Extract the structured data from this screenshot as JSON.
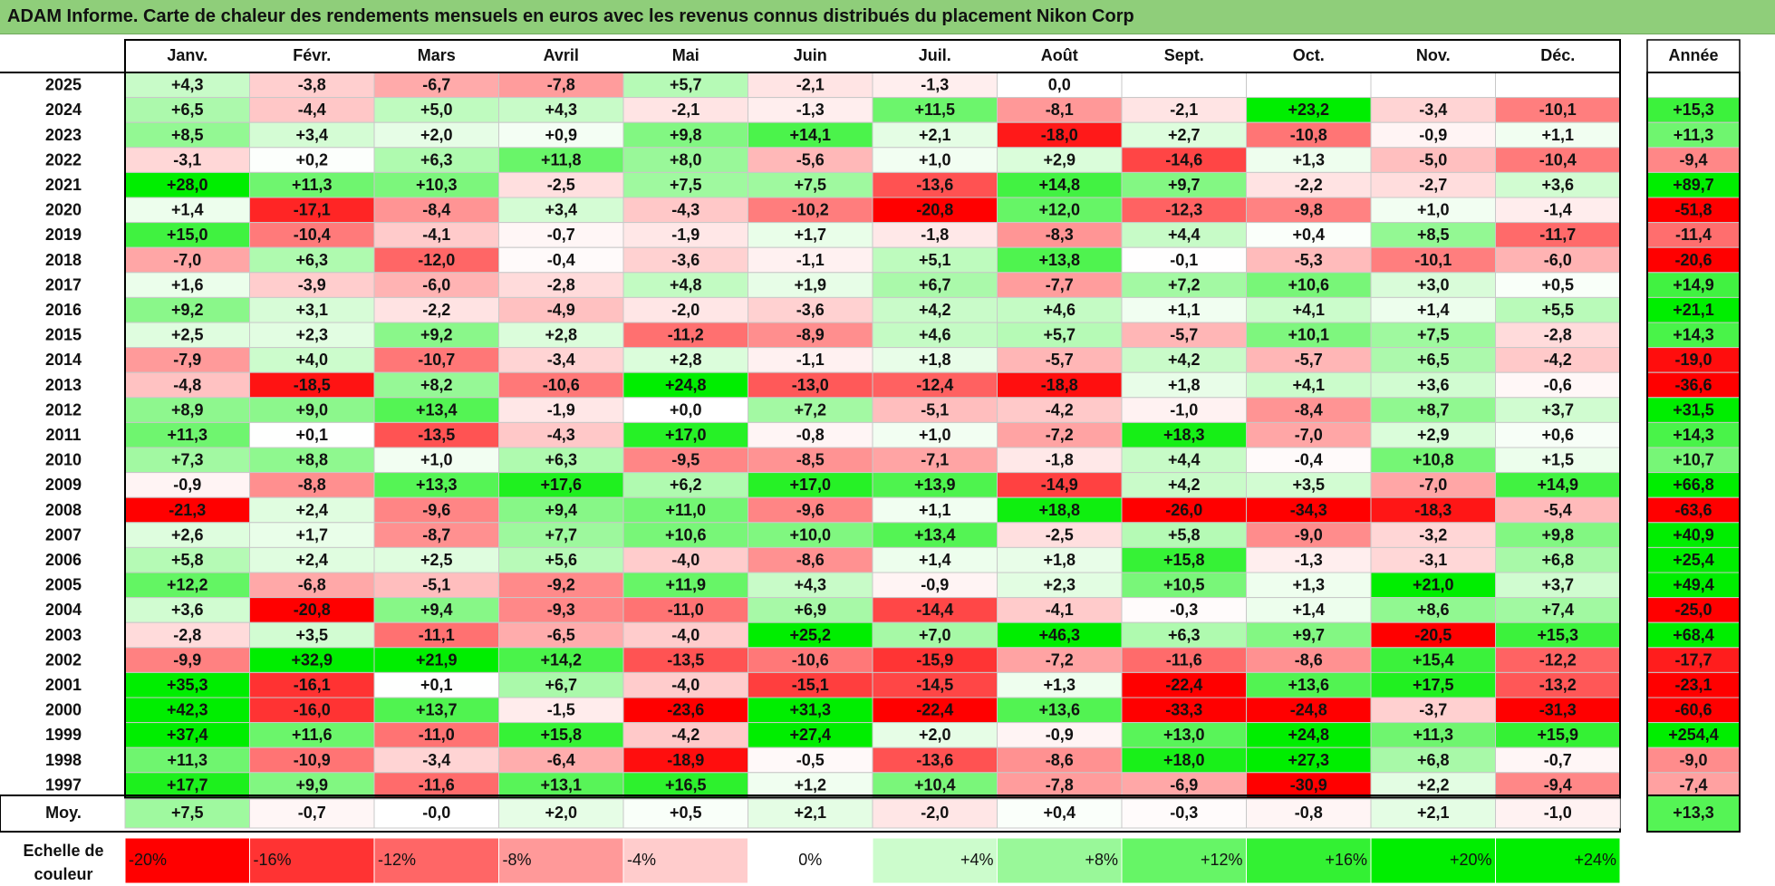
{
  "title": "ADAM Informe. Carte de chaleur des rendements mensuels en euros avec les revenus connus distribués du placement Nikon Corp",
  "chart_data": {
    "type": "heatmap",
    "columns": [
      "Janv.",
      "Févr.",
      "Mars",
      "Avril",
      "Mai",
      "Juin",
      "Juil.",
      "Août",
      "Sept.",
      "Oct.",
      "Nov.",
      "Déc."
    ],
    "annual_header": "Année",
    "rows": [
      {
        "year": "2025",
        "values": [
          "+4,3",
          "-3,8",
          "-6,7",
          "-7,8",
          "+5,7",
          "-2,1",
          "-1,3",
          "0,0",
          "",
          "",
          "",
          ""
        ],
        "annual": ""
      },
      {
        "year": "2024",
        "values": [
          "+6,5",
          "-4,4",
          "+5,0",
          "+4,3",
          "-2,1",
          "-1,3",
          "+11,5",
          "-8,1",
          "-2,1",
          "+23,2",
          "-3,4",
          "-10,1"
        ],
        "annual": "+15,3"
      },
      {
        "year": "2023",
        "values": [
          "+8,5",
          "+3,4",
          "+2,0",
          "+0,9",
          "+9,8",
          "+14,1",
          "+2,1",
          "-18,0",
          "+2,7",
          "-10,8",
          "-0,9",
          "+1,1"
        ],
        "annual": "+11,3"
      },
      {
        "year": "2022",
        "values": [
          "-3,1",
          "+0,2",
          "+6,3",
          "+11,8",
          "+8,0",
          "-5,6",
          "+1,0",
          "+2,9",
          "-14,6",
          "+1,3",
          "-5,0",
          "-10,4"
        ],
        "annual": "-9,4"
      },
      {
        "year": "2021",
        "values": [
          "+28,0",
          "+11,3",
          "+10,3",
          "-2,5",
          "+7,5",
          "+7,5",
          "-13,6",
          "+14,8",
          "+9,7",
          "-2,2",
          "-2,7",
          "+3,6"
        ],
        "annual": "+89,7"
      },
      {
        "year": "2020",
        "values": [
          "+1,4",
          "-17,1",
          "-8,4",
          "+3,4",
          "-4,3",
          "-10,2",
          "-20,8",
          "+12,0",
          "-12,3",
          "-9,8",
          "+1,0",
          "-1,4"
        ],
        "annual": "-51,8"
      },
      {
        "year": "2019",
        "values": [
          "+15,0",
          "-10,4",
          "-4,1",
          "-0,7",
          "-1,9",
          "+1,7",
          "-1,8",
          "-8,3",
          "+4,4",
          "+0,4",
          "+8,5",
          "-11,7"
        ],
        "annual": "-11,4"
      },
      {
        "year": "2018",
        "values": [
          "-7,0",
          "+6,3",
          "-12,0",
          "-0,4",
          "-3,6",
          "-1,1",
          "+5,1",
          "+13,8",
          "-0,1",
          "-5,3",
          "-10,1",
          "-6,0"
        ],
        "annual": "-20,6"
      },
      {
        "year": "2017",
        "values": [
          "+1,6",
          "-3,9",
          "-6,0",
          "-2,8",
          "+4,8",
          "+1,9",
          "+6,7",
          "-7,7",
          "+7,2",
          "+10,6",
          "+3,0",
          "+0,5"
        ],
        "annual": "+14,9"
      },
      {
        "year": "2016",
        "values": [
          "+9,2",
          "+3,1",
          "-2,2",
          "-4,9",
          "-2,0",
          "-3,6",
          "+4,2",
          "+4,6",
          "+1,1",
          "+4,1",
          "+1,4",
          "+5,5"
        ],
        "annual": "+21,1"
      },
      {
        "year": "2015",
        "values": [
          "+2,5",
          "+2,3",
          "+9,2",
          "+2,8",
          "-11,2",
          "-8,9",
          "+4,6",
          "+5,7",
          "-5,7",
          "+10,1",
          "+7,5",
          "-2,8"
        ],
        "annual": "+14,3"
      },
      {
        "year": "2014",
        "values": [
          "-7,9",
          "+4,0",
          "-10,7",
          "-3,4",
          "+2,8",
          "-1,1",
          "+1,8",
          "-5,7",
          "+4,2",
          "-5,7",
          "+6,5",
          "-4,2"
        ],
        "annual": "-19,0"
      },
      {
        "year": "2013",
        "values": [
          "-4,8",
          "-18,5",
          "+8,2",
          "-10,6",
          "+24,8",
          "-13,0",
          "-12,4",
          "-18,8",
          "+1,8",
          "+4,1",
          "+3,6",
          "-0,6"
        ],
        "annual": "-36,6"
      },
      {
        "year": "2012",
        "values": [
          "+8,9",
          "+9,0",
          "+13,4",
          "-1,9",
          "+0,0",
          "+7,2",
          "-5,1",
          "-4,2",
          "-1,0",
          "-8,4",
          "+8,7",
          "+3,7"
        ],
        "annual": "+31,5"
      },
      {
        "year": "2011",
        "values": [
          "+11,3",
          "+0,1",
          "-13,5",
          "-4,3",
          "+17,0",
          "-0,8",
          "+1,0",
          "-7,2",
          "+18,3",
          "-7,0",
          "+2,9",
          "+0,6"
        ],
        "annual": "+14,3"
      },
      {
        "year": "2010",
        "values": [
          "+7,3",
          "+8,8",
          "+1,0",
          "+6,3",
          "-9,5",
          "-8,5",
          "-7,1",
          "-1,8",
          "+4,4",
          "-0,4",
          "+10,8",
          "+1,5"
        ],
        "annual": "+10,7"
      },
      {
        "year": "2009",
        "values": [
          "-0,9",
          "-8,8",
          "+13,3",
          "+17,6",
          "+6,2",
          "+17,0",
          "+13,9",
          "-14,9",
          "+4,2",
          "+3,5",
          "-7,0",
          "+14,9"
        ],
        "annual": "+66,8"
      },
      {
        "year": "2008",
        "values": [
          "-21,3",
          "+2,4",
          "-9,6",
          "+9,4",
          "+11,0",
          "-9,6",
          "+1,1",
          "+18,8",
          "-26,0",
          "-34,3",
          "-18,3",
          "-5,4"
        ],
        "annual": "-63,6"
      },
      {
        "year": "2007",
        "values": [
          "+2,6",
          "+1,7",
          "-8,7",
          "+7,7",
          "+10,6",
          "+10,0",
          "+13,4",
          "-2,5",
          "+5,8",
          "-9,0",
          "-3,2",
          "+9,8"
        ],
        "annual": "+40,9"
      },
      {
        "year": "2006",
        "values": [
          "+5,8",
          "+2,4",
          "+2,5",
          "+5,6",
          "-4,0",
          "-8,6",
          "+1,4",
          "+1,8",
          "+15,8",
          "-1,3",
          "-3,1",
          "+6,8"
        ],
        "annual": "+25,4"
      },
      {
        "year": "2005",
        "values": [
          "+12,2",
          "-6,8",
          "-5,1",
          "-9,2",
          "+11,9",
          "+4,3",
          "-0,9",
          "+2,3",
          "+10,5",
          "+1,3",
          "+21,0",
          "+3,7"
        ],
        "annual": "+49,4"
      },
      {
        "year": "2004",
        "values": [
          "+3,6",
          "-20,8",
          "+9,4",
          "-9,3",
          "-11,0",
          "+6,9",
          "-14,4",
          "-4,1",
          "-0,3",
          "+1,4",
          "+8,6",
          "+7,4"
        ],
        "annual": "-25,0"
      },
      {
        "year": "2003",
        "values": [
          "-2,8",
          "+3,5",
          "-11,1",
          "-6,5",
          "-4,0",
          "+25,2",
          "+7,0",
          "+46,3",
          "+6,3",
          "+9,7",
          "-20,5",
          "+15,3"
        ],
        "annual": "+68,4"
      },
      {
        "year": "2002",
        "values": [
          "-9,9",
          "+32,9",
          "+21,9",
          "+14,2",
          "-13,5",
          "-10,6",
          "-15,9",
          "-7,2",
          "-11,6",
          "-8,6",
          "+15,4",
          "-12,2"
        ],
        "annual": "-17,7"
      },
      {
        "year": "2001",
        "values": [
          "+35,3",
          "-16,1",
          "+0,1",
          "+6,7",
          "-4,0",
          "-15,1",
          "-14,5",
          "+1,3",
          "-22,4",
          "+13,6",
          "+17,5",
          "-13,2"
        ],
        "annual": "-23,1"
      },
      {
        "year": "2000",
        "values": [
          "+42,3",
          "-16,0",
          "+13,7",
          "-1,5",
          "-23,6",
          "+31,3",
          "-22,4",
          "+13,6",
          "-33,3",
          "-24,8",
          "-3,7",
          "-31,3"
        ],
        "annual": "-60,6"
      },
      {
        "year": "1999",
        "values": [
          "+37,4",
          "+11,6",
          "-11,0",
          "+15,8",
          "-4,2",
          "+27,4",
          "+2,0",
          "-0,9",
          "+13,0",
          "+24,8",
          "+11,3",
          "+15,9"
        ],
        "annual": "+254,4"
      },
      {
        "year": "1998",
        "values": [
          "+11,3",
          "-10,9",
          "-3,4",
          "-6,4",
          "-18,9",
          "-0,5",
          "-13,6",
          "-8,6",
          "+18,0",
          "+27,3",
          "+6,8",
          "-0,7"
        ],
        "annual": "-9,0"
      },
      {
        "year": "1997",
        "values": [
          "+17,7",
          "+9,9",
          "-11,6",
          "+13,1",
          "+16,5",
          "+1,2",
          "+10,4",
          "-7,8",
          "-6,9",
          "-30,9",
          "+2,2",
          "-9,4"
        ],
        "annual": "-7,4"
      }
    ],
    "average": {
      "label": "Moy.",
      "values": [
        "+7,5",
        "-0,7",
        "-0,0",
        "+2,0",
        "+0,5",
        "+2,1",
        "-2,0",
        "+0,4",
        "-0,3",
        "-0,8",
        "+2,1",
        "-1,0"
      ],
      "annual": "+13,3"
    },
    "scale": {
      "label": "Echelle de couleur",
      "steps": [
        {
          "label": "-20%",
          "value": -20
        },
        {
          "label": "-16%",
          "value": -16
        },
        {
          "label": "-12%",
          "value": -12
        },
        {
          "label": "-8%",
          "value": -8
        },
        {
          "label": "-4%",
          "value": -4
        },
        {
          "label": "0%",
          "value": 0
        },
        {
          "label": "+4%",
          "value": 4
        },
        {
          "label": "+8%",
          "value": 8
        },
        {
          "label": "+12%",
          "value": 12
        },
        {
          "label": "+16%",
          "value": 16
        },
        {
          "label": "+20%",
          "value": 20
        },
        {
          "label": "+24%",
          "value": 24
        }
      ]
    },
    "colors": {
      "negative_max": "#ff0000",
      "neutral": "#ffffff",
      "positive_max": "#00ee00",
      "banner": "#8fce7a"
    }
  }
}
